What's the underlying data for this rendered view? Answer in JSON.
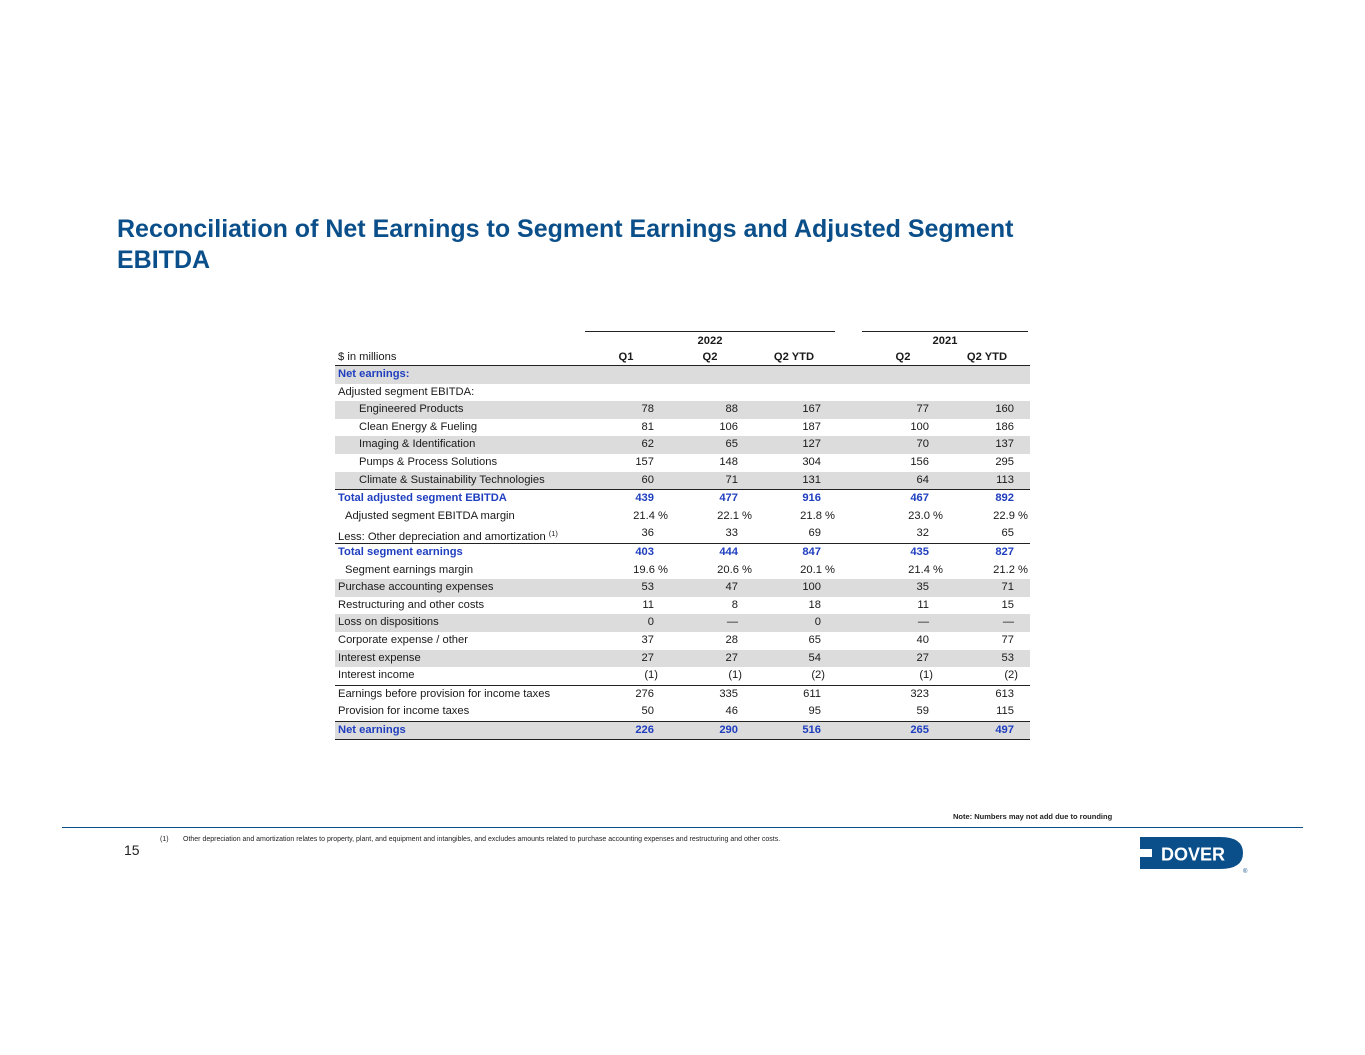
{
  "title": "Reconciliation of Net Earnings to Segment Earnings and Adjusted Segment EBITDA",
  "table": {
    "units_label": "$ in millions",
    "years": [
      "2022",
      "2021"
    ],
    "columns": [
      "Q1",
      "Q2",
      "Q2 YTD",
      "Q2",
      "Q2 YTD"
    ],
    "rows": [
      {
        "label": "Net earnings:",
        "values": [
          "",
          "",
          "",
          "",
          ""
        ],
        "style": "total-header"
      },
      {
        "label": "Adjusted segment EBITDA:",
        "values": [
          "",
          "",
          "",
          "",
          ""
        ],
        "style": "plain"
      },
      {
        "label": "Engineered Products",
        "values": [
          "78",
          "88",
          "167",
          "77",
          "160"
        ],
        "style": "indent"
      },
      {
        "label": "Clean Energy & Fueling",
        "values": [
          "81",
          "106",
          "187",
          "100",
          "186"
        ],
        "style": "indent"
      },
      {
        "label": "Imaging & Identification",
        "values": [
          "62",
          "65",
          "127",
          "70",
          "137"
        ],
        "style": "indent"
      },
      {
        "label": "Pumps & Process Solutions",
        "values": [
          "157",
          "148",
          "304",
          "156",
          "295"
        ],
        "style": "indent"
      },
      {
        "label": "Climate & Sustainability Technologies",
        "values": [
          "60",
          "71",
          "131",
          "64",
          "113"
        ],
        "style": "indent"
      },
      {
        "label": "Total adjusted segment EBITDA",
        "values": [
          "439",
          "477",
          "916",
          "467",
          "892"
        ],
        "style": "total"
      },
      {
        "label": "Adjusted segment EBITDA margin",
        "values": [
          "21.4 %",
          "22.1 %",
          "21.8 %",
          "23.0 %",
          "22.9 %"
        ],
        "style": "margin"
      },
      {
        "label": "Less: Other depreciation and amortization",
        "footnote": "(1)",
        "values": [
          "36",
          "33",
          "69",
          "32",
          "65"
        ],
        "style": "plain"
      },
      {
        "label": "Total segment earnings",
        "values": [
          "403",
          "444",
          "847",
          "435",
          "827"
        ],
        "style": "total"
      },
      {
        "label": "Segment earnings margin",
        "values": [
          "19.6 %",
          "20.6 %",
          "20.1 %",
          "21.4 %",
          "21.2 %"
        ],
        "style": "margin"
      },
      {
        "label": "Purchase accounting expenses",
        "values": [
          "53",
          "47",
          "100",
          "35",
          "71"
        ],
        "style": "plain"
      },
      {
        "label": "Restructuring and other costs",
        "values": [
          "11",
          "8",
          "18",
          "11",
          "15"
        ],
        "style": "plain"
      },
      {
        "label": "Loss on dispositions",
        "values": [
          "0",
          "—",
          "0",
          "—",
          "—"
        ],
        "style": "plain"
      },
      {
        "label": "Corporate expense / other",
        "values": [
          "37",
          "28",
          "65",
          "40",
          "77"
        ],
        "style": "plain"
      },
      {
        "label": "Interest expense",
        "values": [
          "27",
          "27",
          "54",
          "27",
          "53"
        ],
        "style": "plain"
      },
      {
        "label": "Interest income",
        "values": [
          "(1)",
          "(1)",
          "(2)",
          "(1)",
          "(2)"
        ],
        "style": "plain"
      },
      {
        "label": "Earnings before provision for income taxes",
        "values": [
          "276",
          "335",
          "611",
          "323",
          "613"
        ],
        "style": "plain"
      },
      {
        "label": "Provision for income taxes",
        "values": [
          "50",
          "46",
          "95",
          "59",
          "115"
        ],
        "style": "plain"
      },
      {
        "label": "Net earnings",
        "values": [
          "226",
          "290",
          "516",
          "265",
          "497"
        ],
        "style": "total"
      }
    ]
  },
  "note": "Note: Numbers may not add due to rounding",
  "footnote": {
    "number": "(1)",
    "text": "Other depreciation and amortization relates to property, plant, and equipment and intangibles, and excludes amounts related to purchase accounting expenses and restructuring and other costs."
  },
  "page_number": "15",
  "logo": {
    "text": "DOVER",
    "registered": "®",
    "color": "#0b4f8a"
  }
}
